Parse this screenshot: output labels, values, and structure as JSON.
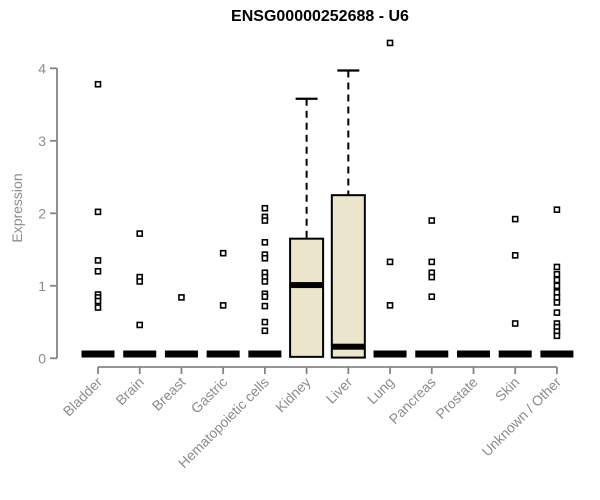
{
  "chart_data": {
    "type": "box",
    "title": "ENSG00000252688 - U6",
    "ylabel": "Expression",
    "xlabel": "",
    "ylim": [
      0,
      4.4
    ],
    "yticks": [
      0,
      1,
      2,
      3,
      4
    ],
    "grid": false,
    "legend": false,
    "point_shape": "open-square",
    "categories": [
      "Bladder",
      "Brain",
      "Breast",
      "Gastric",
      "Hematopoietic cells",
      "Kidney",
      "Liver",
      "Lung",
      "Pancreas",
      "Prostate",
      "Skin",
      "Unknown / Other"
    ],
    "boxes": [
      {
        "category": "Bladder",
        "collapsed": true,
        "median": 0.03,
        "q1": 0,
        "q3": 0.07,
        "outliers": [
          3.78,
          2.02,
          1.35,
          1.2,
          0.88,
          0.84,
          0.79,
          0.7
        ]
      },
      {
        "category": "Brain",
        "collapsed": true,
        "median": 0.03,
        "q1": 0,
        "q3": 0.07,
        "outliers": [
          1.72,
          1.12,
          1.06,
          0.46
        ]
      },
      {
        "category": "Breast",
        "collapsed": true,
        "median": 0.03,
        "q1": 0,
        "q3": 0.07,
        "outliers": [
          0.84
        ]
      },
      {
        "category": "Gastric",
        "collapsed": true,
        "median": 0.03,
        "q1": 0,
        "q3": 0.07,
        "outliers": [
          1.45,
          0.73
        ]
      },
      {
        "category": "Hematopoietic cells",
        "collapsed": true,
        "median": 0.03,
        "q1": 0,
        "q3": 0.07,
        "outliers": [
          2.07,
          1.95,
          1.9,
          1.6,
          1.43,
          1.38,
          1.18,
          1.12,
          1.06,
          0.89,
          0.85,
          0.72,
          0.5,
          0.38
        ]
      },
      {
        "category": "Kidney",
        "collapsed": false,
        "whisker_low": 0.02,
        "q1": 0.02,
        "median": 1.01,
        "q3": 1.65,
        "whisker_high": 3.58,
        "outliers": []
      },
      {
        "category": "Liver",
        "collapsed": false,
        "whisker_low": 0.01,
        "q1": 0.01,
        "median": 0.16,
        "q3": 2.25,
        "whisker_high": 3.97,
        "outliers": []
      },
      {
        "category": "Lung",
        "collapsed": true,
        "median": 0.03,
        "q1": 0,
        "q3": 0.07,
        "outliers": [
          4.35,
          1.33,
          0.73
        ]
      },
      {
        "category": "Pancreas",
        "collapsed": true,
        "median": 0.03,
        "q1": 0,
        "q3": 0.07,
        "outliers": [
          1.9,
          1.33,
          1.18,
          1.12,
          0.85
        ]
      },
      {
        "category": "Prostate",
        "collapsed": true,
        "median": 0.03,
        "q1": 0,
        "q3": 0.07,
        "outliers": []
      },
      {
        "category": "Skin",
        "collapsed": true,
        "median": 0.03,
        "q1": 0,
        "q3": 0.07,
        "outliers": [
          1.92,
          1.42,
          0.48
        ]
      },
      {
        "category": "Unknown / Other",
        "collapsed": true,
        "median": 0.03,
        "q1": 0,
        "q3": 0.07,
        "outliers": [
          2.05,
          1.26,
          1.16,
          1.08,
          1.0,
          0.91,
          0.84,
          0.77,
          0.63,
          0.48,
          0.43,
          0.37,
          0.31
        ]
      }
    ],
    "style": {
      "box_fill": "#ece7cc",
      "box_stroke": "#000000",
      "median_color": "#000000",
      "whisker_color": "#000000",
      "point_color": "#000000",
      "axis_color": "#848484",
      "tick_label_color": "#8c8c8c",
      "title_color": "#000000",
      "background": "#ffffff"
    }
  }
}
